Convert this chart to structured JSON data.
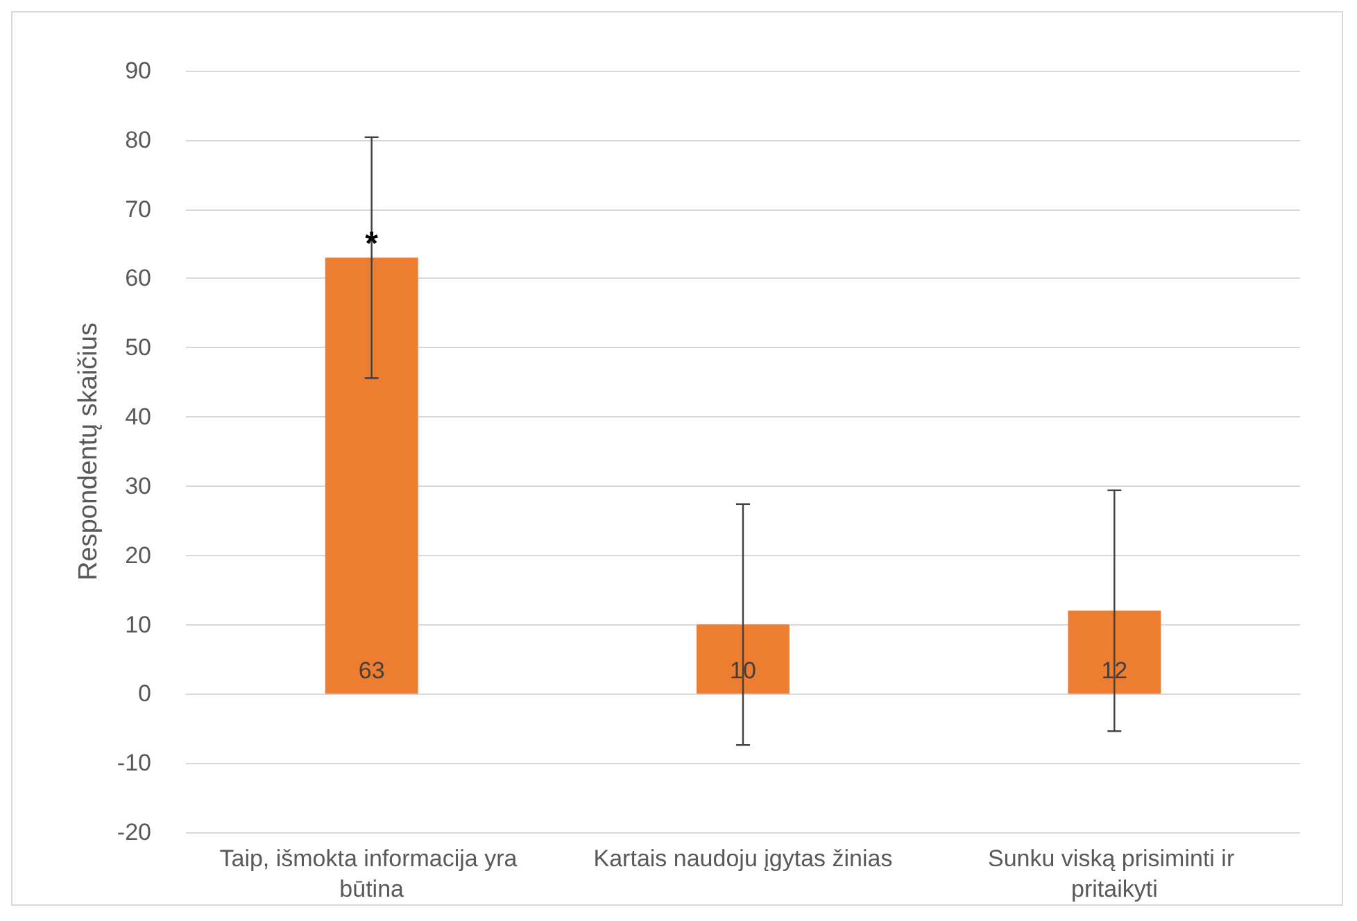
{
  "chart_data": {
    "type": "bar",
    "ylabel": "Respondentų skaičius",
    "categories": [
      "Taip, išmokta informacija yra būtina",
      "Kartais naudoju įgytas žinias",
      "Sunku viską prisiminti ir pritaikyti"
    ],
    "values": [
      63,
      10,
      12
    ],
    "color": "#ed7d31",
    "errors": [
      17.4,
      17.4,
      17.4
    ],
    "ylim": [
      -20,
      90
    ],
    "yticks": [
      -20,
      -10,
      0,
      10,
      20,
      30,
      40,
      50,
      60,
      70,
      80,
      90
    ],
    "grid": "y",
    "data_labels": true,
    "annotations": [
      {
        "text": "*",
        "x": "Taip, išmokta informacija yra būtina",
        "y": 65
      }
    ]
  }
}
